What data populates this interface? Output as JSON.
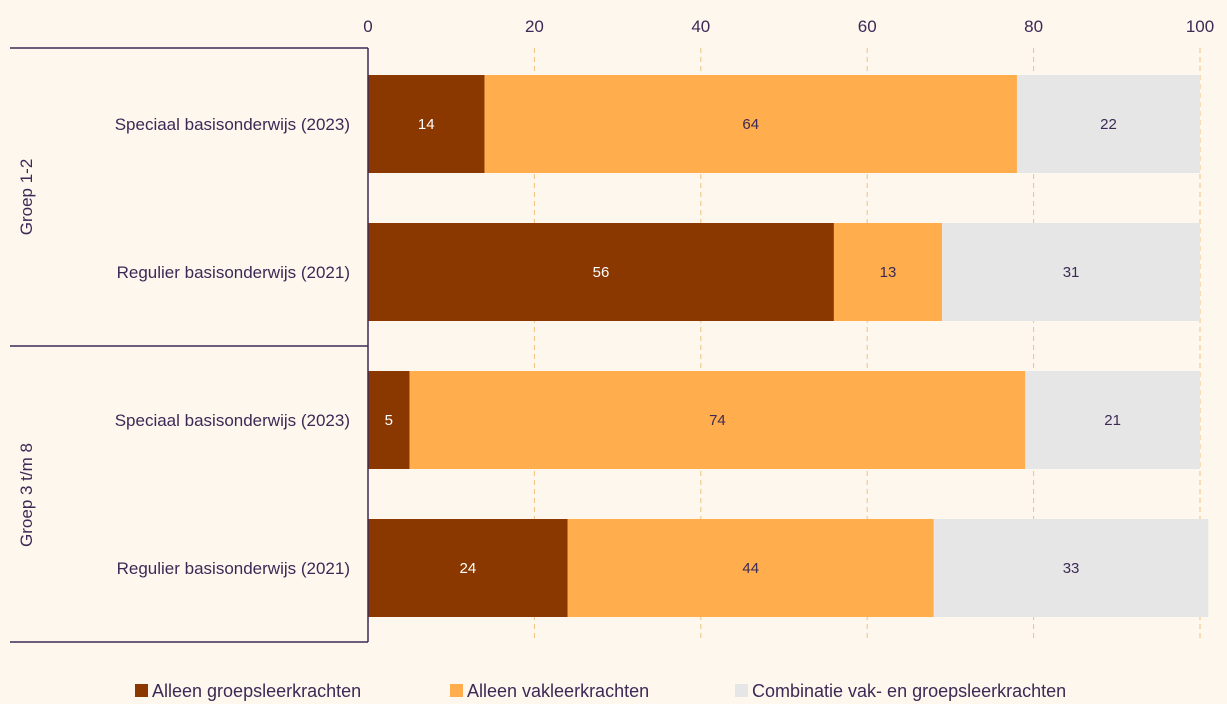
{
  "chart_data": {
    "type": "bar",
    "orientation": "horizontal",
    "stacked": true,
    "xlim": [
      0,
      100
    ],
    "xticks": [
      0,
      20,
      40,
      60,
      80,
      100
    ],
    "grid": "vertical dashed",
    "legend_position": "bottom",
    "groups": [
      {
        "label": "Groep 1-2",
        "categories": [
          "Speciaal basisonderwijs (2023)",
          "Regulier basisonderwijs (2021)"
        ]
      },
      {
        "label": "Groep 3 t/m 8",
        "categories": [
          "Speciaal basisonderwijs (2023)",
          "Regulier basisonderwijs (2021)"
        ]
      }
    ],
    "series": [
      {
        "name": "Alleen groepsleerkrachten",
        "color": "#8a3800",
        "label_color": "#ffffff",
        "values": [
          14,
          56,
          5,
          24
        ]
      },
      {
        "name": "Alleen vakleerkrachten",
        "color": "#ffad4d",
        "label_color": "#3b2a55",
        "values": [
          64,
          13,
          74,
          44
        ]
      },
      {
        "name": "Combinatie vak- en groepsleerkrachten",
        "color": "#e6e6e6",
        "label_color": "#3b2a55",
        "values": [
          22,
          31,
          21,
          33
        ]
      }
    ]
  },
  "colors": {
    "background": "#fdf7ee",
    "axis": "#3b2a55",
    "grid": "#f2c27a",
    "text": "#3b2a55"
  }
}
